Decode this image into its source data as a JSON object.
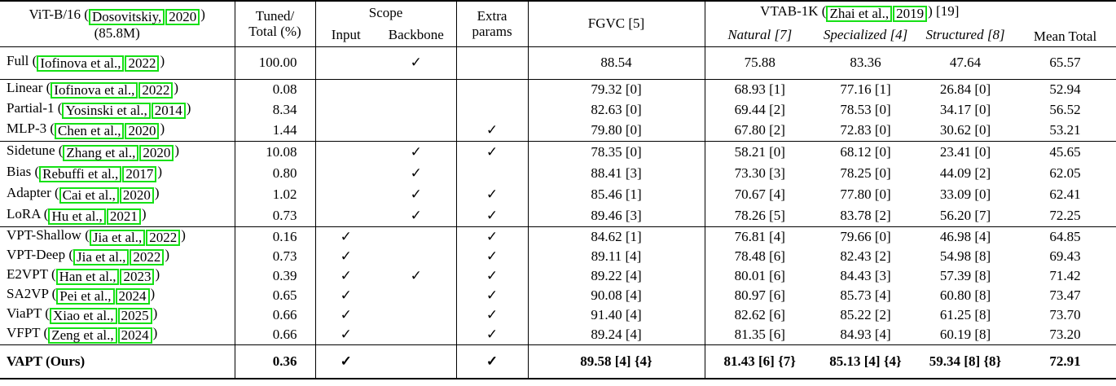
{
  "colors": {
    "link_box": "#15e015"
  },
  "header": {
    "model_pre": "ViT-B/16 (",
    "model_cite_author": "Dosovitskiy,",
    "model_cite_year": "2020",
    "model_post": ")",
    "model_line2": "(85.8M)",
    "tuned_line1": "Tuned/",
    "tuned_line2": "Total (%)",
    "scope": "Scope",
    "input": "Input",
    "backbone": "Backbone",
    "extra_line1": "Extra",
    "extra_line2": "params",
    "fgvc": "FGVC [5]",
    "vtab_pre": "VTAB-1K (",
    "vtab_cite_author": "Zhai et al.,",
    "vtab_cite_year": "2019",
    "vtab_post": ") [19]",
    "natural": "Natural [7]",
    "specialized": "Specialized [4]",
    "structured": "Structured [8]",
    "mean_total": "Mean Total"
  },
  "check_glyph": "✓",
  "groups": [
    {
      "name": "full-finetune",
      "rows": [
        {
          "method": {
            "pre": "Full (",
            "c1": "Iofinova et al.,",
            "c2": "2022",
            "post": ")"
          },
          "tuned": "100.00",
          "input": "",
          "backbone": "✓",
          "extra": "",
          "fgvc": "88.54",
          "natural": "75.88",
          "specialized": "83.36",
          "structured": "47.64",
          "mean": "65.57"
        }
      ]
    },
    {
      "name": "head-oriented",
      "rows": [
        {
          "method": {
            "pre": "Linear (",
            "c1": "Iofinova et al.,",
            "c2": "2022",
            "post": ")"
          },
          "tuned": "0.08",
          "input": "",
          "backbone": "",
          "extra": "",
          "fgvc": "79.32 [0]",
          "natural": "68.93 [1]",
          "specialized": "77.16 [1]",
          "structured": "26.84 [0]",
          "mean": "52.94"
        },
        {
          "method": {
            "pre": "Partial-1 (",
            "c1": "Yosinski et al.,",
            "c2": "2014",
            "post": ")"
          },
          "tuned": "8.34",
          "input": "",
          "backbone": "",
          "extra": "",
          "fgvc": "82.63 [0]",
          "natural": "69.44 [2]",
          "specialized": "78.53 [0]",
          "structured": "34.17 [0]",
          "mean": "56.52"
        },
        {
          "method": {
            "pre": "MLP-3 (",
            "c1": "Chen et al.,",
            "c2": "2020",
            "post": ")"
          },
          "tuned": "1.44",
          "input": "",
          "backbone": "",
          "extra": "✓",
          "fgvc": "79.80 [0]",
          "natural": "67.80 [2]",
          "specialized": "72.83 [0]",
          "structured": "30.62 [0]",
          "mean": "53.21"
        }
      ]
    },
    {
      "name": "backbone-oriented",
      "rows": [
        {
          "method": {
            "pre": "Sidetune (",
            "c1": "Zhang et al.,",
            "c2": "2020",
            "post": ")"
          },
          "tuned": "10.08",
          "input": "",
          "backbone": "✓",
          "extra": "✓",
          "fgvc": "78.35 [0]",
          "natural": "58.21 [0]",
          "specialized": "68.12 [0]",
          "structured": "23.41 [0]",
          "mean": "45.65"
        },
        {
          "method": {
            "pre": "Bias (",
            "c1": "Rebuffi et al.,",
            "c2": "2017",
            "post": ")"
          },
          "tuned": "0.80",
          "input": "",
          "backbone": "✓",
          "extra": "",
          "fgvc": "88.41 [3]",
          "natural": "73.30 [3]",
          "specialized": "78.25 [0]",
          "structured": "44.09 [2]",
          "mean": "62.05"
        },
        {
          "method": {
            "pre": "Adapter (",
            "c1": "Cai et al.,",
            "c2": "2020",
            "post": ")"
          },
          "tuned": "1.02",
          "input": "",
          "backbone": "✓",
          "extra": "✓",
          "fgvc": "85.46 [1]",
          "natural": "70.67 [4]",
          "specialized": "77.80 [0]",
          "structured": "33.09 [0]",
          "mean": "62.41"
        },
        {
          "method": {
            "pre": "LoRA (",
            "c1": "Hu et al.,",
            "c2": "2021",
            "post": ")"
          },
          "tuned": "0.73",
          "input": "",
          "backbone": "✓",
          "extra": "✓",
          "fgvc": "89.46 [3]",
          "natural": "78.26 [5]",
          "specialized": "83.78 [2]",
          "structured": "56.20 [7]",
          "mean": "72.25"
        }
      ]
    },
    {
      "name": "prompt-oriented",
      "rows": [
        {
          "method": {
            "pre": "VPT-Shallow (",
            "c1": "Jia et al.,",
            "c2": "2022",
            "post": ")"
          },
          "tuned": "0.16",
          "input": "✓",
          "backbone": "",
          "extra": "✓",
          "fgvc": "84.62 [1]",
          "natural": "76.81 [4]",
          "specialized": "79.66 [0]",
          "structured": "46.98 [4]",
          "mean": "64.85"
        },
        {
          "method": {
            "pre": "VPT-Deep (",
            "c1": "Jia et al.,",
            "c2": "2022",
            "post": ")"
          },
          "tuned": "0.73",
          "input": "✓",
          "backbone": "",
          "extra": "✓",
          "fgvc": "89.11 [4]",
          "natural": "78.48 [6]",
          "specialized": "82.43 [2]",
          "structured": "54.98 [8]",
          "mean": "69.43"
        },
        {
          "method": {
            "pre": "E2VPT (",
            "c1": "Han et al.,",
            "c2": "2023",
            "post": ")"
          },
          "tuned": "0.39",
          "input": "✓",
          "backbone": "✓",
          "extra": "✓",
          "fgvc": "89.22 [4]",
          "natural": "80.01 [6]",
          "specialized": "84.43 [3]",
          "structured": "57.39 [8]",
          "mean": "71.42"
        },
        {
          "method": {
            "pre": "SA2VP (",
            "c1": "Pei et al.,",
            "c2": "2024",
            "post": ")"
          },
          "tuned": "0.65",
          "input": "✓",
          "backbone": "",
          "extra": "✓",
          "fgvc": "90.08 [4]",
          "natural": "80.97 [6]",
          "specialized": "85.73 [4]",
          "structured": "60.80 [8]",
          "mean": "73.47"
        },
        {
          "method": {
            "pre": "ViaPT (",
            "c1": "Xiao et al.,",
            "c2": "2025",
            "post": ")"
          },
          "tuned": "0.66",
          "input": "✓",
          "backbone": "",
          "extra": "✓",
          "fgvc": "91.40 [4]",
          "natural": "82.62 [6]",
          "specialized": "85.22 [2]",
          "structured": "61.25 [8]",
          "mean": "73.70"
        },
        {
          "method": {
            "pre": "VFPT (",
            "c1": "Zeng et al.,",
            "c2": "2024",
            "post": ")"
          },
          "tuned": "0.66",
          "input": "✓",
          "backbone": "",
          "extra": "✓",
          "fgvc": "89.24 [4]",
          "natural": "81.35 [6]",
          "specialized": "84.93 [4]",
          "structured": "60.19 [8]",
          "mean": "73.20"
        }
      ]
    },
    {
      "name": "ours",
      "bold": true,
      "rows": [
        {
          "method": {
            "pre": "VAPT (Ours)",
            "c1": null,
            "c2": null,
            "post": ""
          },
          "tuned": "0.36",
          "input": "✓",
          "backbone": "",
          "extra": "✓",
          "fgvc": "89.58 [4] {4}",
          "natural": "81.43 [6] {7}",
          "specialized": "85.13 [4] {4}",
          "structured": "59.34 [8] {8}",
          "mean": "72.91"
        }
      ]
    }
  ]
}
